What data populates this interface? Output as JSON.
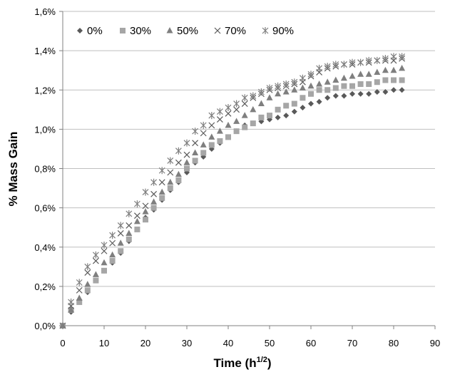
{
  "chart_data": {
    "type": "scatter",
    "title": "",
    "xlabel": "Time (h",
    "xlabel_sup": "1/2",
    "xlabel_close": ")",
    "ylabel": "% Mass Gain",
    "xlim": [
      0,
      90
    ],
    "ylim": [
      0,
      1.6
    ],
    "x_ticks": [
      "0",
      "10",
      "20",
      "30",
      "40",
      "50",
      "60",
      "70",
      "80",
      "90"
    ],
    "y_ticks": [
      "0,0%",
      "0,2%",
      "0,4%",
      "0,6%",
      "0,8%",
      "1,0%",
      "1,2%",
      "1,4%",
      "1,6%"
    ],
    "grid": "horizontal",
    "legend_position": "top-left",
    "x": [
      0,
      2,
      4,
      6,
      8,
      10,
      12,
      14,
      16,
      18,
      20,
      22,
      24,
      26,
      28,
      30,
      32,
      34,
      36,
      38,
      40,
      42,
      44,
      46,
      48,
      50,
      52,
      54,
      56,
      58,
      60,
      62,
      64,
      66,
      68,
      70,
      72,
      74,
      76,
      78,
      80,
      82
    ],
    "series": [
      {
        "name": "0%",
        "marker": "diamond",
        "color": "#595959",
        "values": [
          0.0,
          0.07,
          0.12,
          0.17,
          0.23,
          0.28,
          0.32,
          0.37,
          0.43,
          0.49,
          0.55,
          0.59,
          0.64,
          0.69,
          0.73,
          0.78,
          0.83,
          0.86,
          0.9,
          0.93,
          0.96,
          0.99,
          1.02,
          1.03,
          1.04,
          1.05,
          1.06,
          1.07,
          1.09,
          1.11,
          1.13,
          1.14,
          1.16,
          1.17,
          1.17,
          1.18,
          1.18,
          1.18,
          1.19,
          1.19,
          1.2,
          1.2
        ]
      },
      {
        "name": "30%",
        "marker": "square",
        "color": "#a6a6a6",
        "values": [
          0.0,
          0.08,
          0.12,
          0.18,
          0.23,
          0.28,
          0.33,
          0.38,
          0.44,
          0.49,
          0.54,
          0.6,
          0.65,
          0.7,
          0.74,
          0.8,
          0.84,
          0.88,
          0.92,
          0.94,
          0.96,
          0.99,
          1.01,
          1.03,
          1.06,
          1.07,
          1.1,
          1.12,
          1.13,
          1.16,
          1.18,
          1.2,
          1.2,
          1.21,
          1.22,
          1.22,
          1.23,
          1.23,
          1.24,
          1.25,
          1.25,
          1.25
        ]
      },
      {
        "name": "50%",
        "marker": "triangle",
        "color": "#7f7f7f",
        "values": [
          0.0,
          0.08,
          0.14,
          0.21,
          0.26,
          0.32,
          0.36,
          0.42,
          0.47,
          0.53,
          0.58,
          0.63,
          0.68,
          0.73,
          0.77,
          0.83,
          0.88,
          0.92,
          0.96,
          0.99,
          1.02,
          1.04,
          1.07,
          1.1,
          1.13,
          1.16,
          1.18,
          1.19,
          1.2,
          1.21,
          1.22,
          1.23,
          1.24,
          1.25,
          1.26,
          1.27,
          1.28,
          1.28,
          1.29,
          1.3,
          1.3,
          1.31
        ]
      },
      {
        "name": "70%",
        "marker": "x",
        "color": "#595959",
        "values": [
          0.0,
          0.1,
          0.18,
          0.27,
          0.33,
          0.38,
          0.42,
          0.47,
          0.51,
          0.56,
          0.61,
          0.67,
          0.73,
          0.78,
          0.83,
          0.87,
          0.93,
          0.98,
          1.02,
          1.05,
          1.08,
          1.1,
          1.13,
          1.16,
          1.18,
          1.2,
          1.21,
          1.22,
          1.23,
          1.24,
          1.27,
          1.29,
          1.31,
          1.32,
          1.33,
          1.33,
          1.34,
          1.34,
          1.35,
          1.35,
          1.35,
          1.36
        ]
      },
      {
        "name": "90%",
        "marker": "asterisk",
        "color": "#7f7f7f",
        "values": [
          0.0,
          0.12,
          0.22,
          0.3,
          0.36,
          0.41,
          0.46,
          0.51,
          0.57,
          0.62,
          0.68,
          0.73,
          0.79,
          0.84,
          0.89,
          0.93,
          0.99,
          1.02,
          1.07,
          1.09,
          1.11,
          1.13,
          1.16,
          1.17,
          1.19,
          1.21,
          1.22,
          1.23,
          1.24,
          1.26,
          1.28,
          1.31,
          1.32,
          1.33,
          1.33,
          1.34,
          1.34,
          1.35,
          1.35,
          1.36,
          1.37,
          1.37
        ]
      }
    ]
  }
}
